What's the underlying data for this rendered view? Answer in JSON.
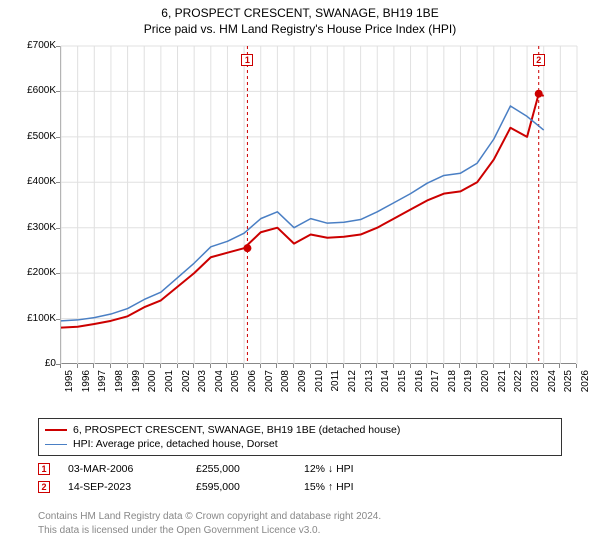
{
  "title_line1": "6, PROSPECT CRESCENT, SWANAGE, BH19 1BE",
  "title_line2": "Price paid vs. HM Land Registry's House Price Index (HPI)",
  "chart": {
    "type": "line",
    "x_years": [
      1995,
      1996,
      1997,
      1998,
      1999,
      2000,
      2001,
      2002,
      2003,
      2004,
      2005,
      2006,
      2007,
      2008,
      2009,
      2010,
      2011,
      2012,
      2013,
      2014,
      2015,
      2016,
      2017,
      2018,
      2019,
      2020,
      2021,
      2022,
      2023,
      2024,
      2025,
      2026
    ],
    "xlim": [
      1995,
      2026
    ],
    "ylim": [
      0,
      700000
    ],
    "ytick_step": 100000,
    "y_labels": [
      "£0",
      "£100K",
      "£200K",
      "£300K",
      "£400K",
      "£500K",
      "£600K",
      "£700K"
    ],
    "background": "#ffffff",
    "grid_color": "#e0e0e0",
    "axis_color": "#888888",
    "series": [
      {
        "name": "subject",
        "label": "6, PROSPECT CRESCENT, SWANAGE, BH19 1BE (detached house)",
        "color": "#cc0000",
        "width": 2,
        "data": [
          [
            1995,
            80000
          ],
          [
            1996,
            82000
          ],
          [
            1997,
            88000
          ],
          [
            1998,
            95000
          ],
          [
            1999,
            105000
          ],
          [
            2000,
            125000
          ],
          [
            2001,
            140000
          ],
          [
            2002,
            170000
          ],
          [
            2003,
            200000
          ],
          [
            2004,
            235000
          ],
          [
            2005,
            245000
          ],
          [
            2006,
            255000
          ],
          [
            2007,
            290000
          ],
          [
            2008,
            300000
          ],
          [
            2009,
            265000
          ],
          [
            2010,
            285000
          ],
          [
            2011,
            278000
          ],
          [
            2012,
            280000
          ],
          [
            2013,
            285000
          ],
          [
            2014,
            300000
          ],
          [
            2015,
            320000
          ],
          [
            2016,
            340000
          ],
          [
            2017,
            360000
          ],
          [
            2018,
            375000
          ],
          [
            2019,
            380000
          ],
          [
            2020,
            400000
          ],
          [
            2021,
            450000
          ],
          [
            2022,
            520000
          ],
          [
            2023,
            500000
          ],
          [
            2023.7,
            595000
          ],
          [
            2024,
            590000
          ]
        ]
      },
      {
        "name": "hpi",
        "label": "HPI: Average price, detached house, Dorset",
        "color": "#4a7fc4",
        "width": 1.5,
        "data": [
          [
            1995,
            95000
          ],
          [
            1996,
            97000
          ],
          [
            1997,
            102000
          ],
          [
            1998,
            110000
          ],
          [
            1999,
            122000
          ],
          [
            2000,
            142000
          ],
          [
            2001,
            158000
          ],
          [
            2002,
            190000
          ],
          [
            2003,
            222000
          ],
          [
            2004,
            258000
          ],
          [
            2005,
            270000
          ],
          [
            2006,
            288000
          ],
          [
            2007,
            320000
          ],
          [
            2008,
            335000
          ],
          [
            2009,
            300000
          ],
          [
            2010,
            320000
          ],
          [
            2011,
            310000
          ],
          [
            2012,
            312000
          ],
          [
            2013,
            318000
          ],
          [
            2014,
            335000
          ],
          [
            2015,
            355000
          ],
          [
            2016,
            375000
          ],
          [
            2017,
            398000
          ],
          [
            2018,
            415000
          ],
          [
            2019,
            420000
          ],
          [
            2020,
            442000
          ],
          [
            2021,
            495000
          ],
          [
            2022,
            568000
          ],
          [
            2023,
            545000
          ],
          [
            2024,
            515000
          ]
        ]
      }
    ],
    "markers": [
      {
        "num": "1",
        "year": 2006.2,
        "price": 255000,
        "color": "#cc0000"
      },
      {
        "num": "2",
        "year": 2023.7,
        "price": 595000,
        "color": "#cc0000"
      }
    ],
    "sale_point_radius": 4
  },
  "legend": {
    "row1_label": "6, PROSPECT CRESCENT, SWANAGE, BH19 1BE (detached house)",
    "row2_label": "HPI: Average price, detached house, Dorset"
  },
  "sales": [
    {
      "num": "1",
      "date": "03-MAR-2006",
      "price": "£255,000",
      "diff": "12% ↓ HPI",
      "color": "#cc0000"
    },
    {
      "num": "2",
      "date": "14-SEP-2023",
      "price": "£595,000",
      "diff": "15% ↑ HPI",
      "color": "#cc0000"
    }
  ],
  "footer_line1": "Contains HM Land Registry data © Crown copyright and database right 2024.",
  "footer_line2": "This data is licensed under the Open Government Licence v3.0."
}
